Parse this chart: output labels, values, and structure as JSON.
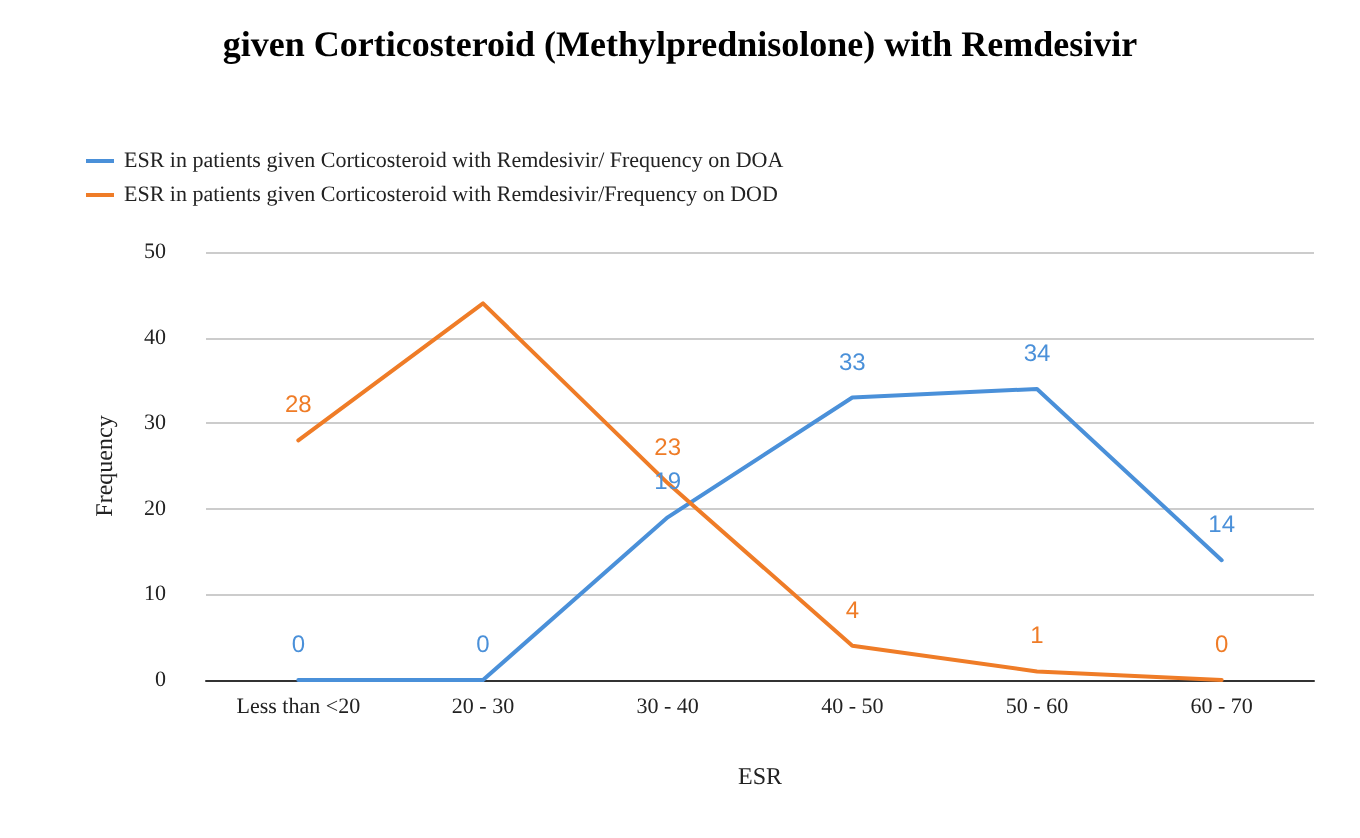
{
  "chart_data": {
    "type": "line",
    "title": "given Corticosteroid (Methylprednisolone) with Remdesivir",
    "xlabel": "ESR",
    "ylabel": "Frequency",
    "categories": [
      "Less than <20",
      "20 - 30",
      "30 - 40",
      "40 - 50",
      "50 - 60",
      "60 - 70"
    ],
    "series": [
      {
        "name": "ESR in patients given Corticosteroid with Remdesivir/ Frequency on DOA",
        "color": "#4a90d9",
        "values": [
          0,
          0,
          19,
          33,
          34,
          14
        ],
        "value_labels": [
          "0",
          "0",
          "19",
          "33",
          "34",
          "14"
        ]
      },
      {
        "name": "ESR in patients given Corticosteroid with Remdesivir/Frequency on DOD",
        "color": "#ef7c27",
        "values": [
          28,
          44,
          23,
          4,
          1,
          0
        ],
        "value_labels": [
          "28",
          null,
          "23",
          "4",
          "1",
          "0"
        ]
      }
    ],
    "ylim": [
      0,
      50
    ],
    "yticks": [
      0,
      10,
      20,
      30,
      40,
      50
    ],
    "grid": "y",
    "legend": "top left",
    "marker": "none",
    "line_style": "solid"
  }
}
